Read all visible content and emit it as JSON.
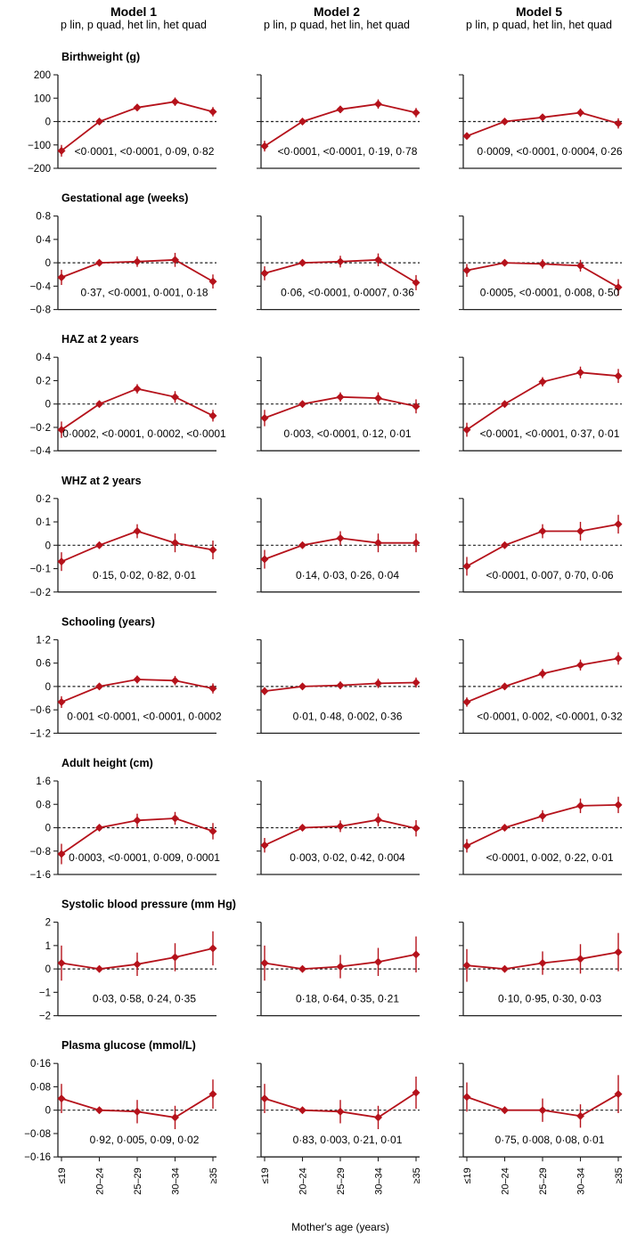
{
  "figure": {
    "x_label": "Mother's age (years)",
    "x_categories": [
      "≤19",
      "20–24",
      "25–29",
      "30–34",
      "≥35"
    ],
    "model_subtitle": "p lin, p quad, het lin, het quad"
  },
  "chart_data": {
    "type": "line",
    "models": [
      "Model 1",
      "Model 2",
      "Model 5"
    ],
    "categories": [
      "≤19",
      "20–24",
      "25–29",
      "30–34",
      "≥35"
    ],
    "xlabel": "Mother's age (years)",
    "reference_line": 0,
    "error_bars": "95% CI",
    "outcomes": [
      {
        "title": "Birthweight (g)",
        "ylim": [
          -200,
          200
        ],
        "ticks": [
          "200",
          "100",
          "0",
          "−100",
          "−200"
        ],
        "tick_values": [
          200,
          100,
          0,
          -100,
          -200
        ],
        "panels": [
          {
            "estimates": [
              -125,
              0,
              60,
              85,
              42
            ],
            "lower": [
              -150,
              0,
              45,
              67,
              22
            ],
            "upper": [
              -100,
              0,
              75,
              103,
              62
            ],
            "pvalues": "<0·0001, <0·0001, 0·09, 0·82"
          },
          {
            "estimates": [
              -105,
              0,
              52,
              75,
              38
            ],
            "lower": [
              -128,
              0,
              37,
              55,
              18
            ],
            "upper": [
              -82,
              0,
              67,
              95,
              58
            ],
            "pvalues": "<0·0001, <0·0001, 0·19, 0·78"
          },
          {
            "estimates": [
              -62,
              0,
              18,
              38,
              -8
            ],
            "lower": [
              -75,
              0,
              5,
              20,
              -30
            ],
            "upper": [
              -49,
              0,
              31,
              56,
              14
            ],
            "pvalues": "0·0009, <0·0001, 0·0004, 0·26"
          }
        ]
      },
      {
        "title": "Gestational age (weeks)",
        "ylim": [
          -0.8,
          0.8
        ],
        "ticks": [
          "0·8",
          "0·4",
          "0",
          "−0·4",
          "−0·8"
        ],
        "tick_values": [
          0.8,
          0.4,
          0,
          -0.4,
          -0.8
        ],
        "panels": [
          {
            "estimates": [
              -0.25,
              0,
              0.02,
              0.05,
              -0.32
            ],
            "lower": [
              -0.38,
              0,
              -0.07,
              -0.07,
              -0.44
            ],
            "upper": [
              -0.12,
              0,
              0.11,
              0.17,
              -0.2
            ],
            "pvalues": "0·37, <0·0001, 0·001, 0·18"
          },
          {
            "estimates": [
              -0.18,
              0,
              0.02,
              0.05,
              -0.34
            ],
            "lower": [
              -0.3,
              0,
              -0.08,
              -0.06,
              -0.47
            ],
            "upper": [
              -0.06,
              0,
              0.12,
              0.16,
              -0.21
            ],
            "pvalues": "0·06, <0·0001, 0·0007, 0·36"
          },
          {
            "estimates": [
              -0.13,
              0,
              -0.02,
              -0.05,
              -0.42
            ],
            "lower": [
              -0.24,
              0,
              -0.1,
              -0.15,
              -0.56
            ],
            "upper": [
              -0.02,
              0,
              0.06,
              0.05,
              -0.28
            ],
            "pvalues": "0·0005, <0·0001, 0·008, 0·50"
          }
        ]
      },
      {
        "title": "HAZ at 2 years",
        "ylim": [
          -0.4,
          0.4
        ],
        "ticks": [
          "0·4",
          "0·2",
          "0",
          "−0·2",
          "−0·4"
        ],
        "tick_values": [
          0.4,
          0.2,
          0,
          -0.2,
          -0.4
        ],
        "panels": [
          {
            "estimates": [
              -0.22,
              0,
              0.13,
              0.06,
              -0.1
            ],
            "lower": [
              -0.29,
              0,
              0.09,
              0.01,
              -0.15
            ],
            "upper": [
              -0.15,
              0,
              0.17,
              0.11,
              -0.05
            ],
            "pvalues": "0·0002, <0·0001, 0·0002, <0·0001"
          },
          {
            "estimates": [
              -0.12,
              0,
              0.06,
              0.05,
              -0.02
            ],
            "lower": [
              -0.19,
              0,
              0.02,
              0,
              -0.08
            ],
            "upper": [
              -0.05,
              0,
              0.1,
              0.1,
              0.04
            ],
            "pvalues": "0·003, <0·0001, 0·12, 0·01"
          },
          {
            "estimates": [
              -0.22,
              0,
              0.19,
              0.27,
              0.24
            ],
            "lower": [
              -0.28,
              0,
              0.15,
              0.22,
              0.18
            ],
            "upper": [
              -0.16,
              0,
              0.23,
              0.32,
              0.3
            ],
            "pvalues": "<0·0001, <0·0001, 0·37, 0·01"
          }
        ]
      },
      {
        "title": "WHZ at 2 years",
        "ylim": [
          -0.2,
          0.2
        ],
        "ticks": [
          "0·2",
          "0·1",
          "0",
          "−0·1",
          "−0·2"
        ],
        "tick_values": [
          0.2,
          0.1,
          0,
          -0.1,
          -0.2
        ],
        "panels": [
          {
            "estimates": [
              -0.07,
              0,
              0.06,
              0.01,
              -0.02
            ],
            "lower": [
              -0.11,
              0,
              0.03,
              -0.03,
              -0.06
            ],
            "upper": [
              -0.03,
              0,
              0.09,
              0.05,
              0.02
            ],
            "pvalues": "0·15, 0·02, 0·82, 0·01"
          },
          {
            "estimates": [
              -0.06,
              0,
              0.03,
              0.01,
              0.01
            ],
            "lower": [
              -0.1,
              0,
              0,
              -0.03,
              -0.03
            ],
            "upper": [
              -0.02,
              0,
              0.06,
              0.05,
              0.05
            ],
            "pvalues": "0·14, 0·03, 0·26, 0·04"
          },
          {
            "estimates": [
              -0.09,
              0,
              0.06,
              0.06,
              0.09
            ],
            "lower": [
              -0.13,
              0,
              0.03,
              0.02,
              0.05
            ],
            "upper": [
              -0.05,
              0,
              0.09,
              0.1,
              0.13
            ],
            "pvalues": "<0·0001, 0·007, 0·70, 0·06"
          }
        ]
      },
      {
        "title": "Schooling (years)",
        "ylim": [
          -1.2,
          1.2
        ],
        "ticks": [
          "1·2",
          "0·6",
          "0",
          "−0·6",
          "−1·2"
        ],
        "tick_values": [
          1.2,
          0.6,
          0,
          -0.6,
          -1.2
        ],
        "panels": [
          {
            "estimates": [
              -0.4,
              0,
              0.18,
              0.15,
              -0.05
            ],
            "lower": [
              -0.55,
              0,
              0.08,
              0.03,
              -0.18
            ],
            "upper": [
              -0.25,
              0,
              0.28,
              0.27,
              0.08
            ],
            "pvalues": "0·001 <0·0001, <0·0001, 0·0002"
          },
          {
            "estimates": [
              -0.12,
              0,
              0.03,
              0.08,
              0.1
            ],
            "lower": [
              -0.22,
              0,
              -0.07,
              -0.04,
              -0.03
            ],
            "upper": [
              -0.02,
              0,
              0.13,
              0.2,
              0.23
            ],
            "pvalues": "0·01, 0·48, 0·002, 0·36"
          },
          {
            "estimates": [
              -0.4,
              0,
              0.33,
              0.55,
              0.72
            ],
            "lower": [
              -0.52,
              0,
              0.21,
              0.41,
              0.56
            ],
            "upper": [
              -0.28,
              0,
              0.45,
              0.69,
              0.88
            ],
            "pvalues": "<0·0001, 0·002, <0·0001, 0·32"
          }
        ]
      },
      {
        "title": "Adult height (cm)",
        "ylim": [
          -1.6,
          1.6
        ],
        "ticks": [
          "1·6",
          "0·8",
          "0",
          "−0·8",
          "−1·6"
        ],
        "tick_values": [
          1.6,
          0.8,
          0,
          -0.8,
          -1.6
        ],
        "panels": [
          {
            "estimates": [
              -0.9,
              0,
              0.25,
              0.32,
              -0.12
            ],
            "lower": [
              -1.25,
              0,
              0.02,
              0.1,
              -0.4
            ],
            "upper": [
              -0.55,
              0,
              0.48,
              0.54,
              0.16
            ],
            "pvalues": "0·0003, <0·0001, 0·009, 0·0001"
          },
          {
            "estimates": [
              -0.6,
              0,
              0.05,
              0.27,
              -0.02
            ],
            "lower": [
              -0.85,
              0,
              -0.15,
              0.05,
              -0.3
            ],
            "upper": [
              -0.35,
              0,
              0.25,
              0.49,
              0.26
            ],
            "pvalues": "0·003, 0·02, 0·42, 0·004"
          },
          {
            "estimates": [
              -0.62,
              0,
              0.4,
              0.75,
              0.78
            ],
            "lower": [
              -0.85,
              0,
              0.2,
              0.5,
              0.5
            ],
            "upper": [
              -0.39,
              0,
              0.6,
              1,
              1.06
            ],
            "pvalues": "<0·0001, 0·002, 0·22, 0·01"
          }
        ]
      },
      {
        "title": "Systolic blood pressure (mm Hg)",
        "ylim": [
          -2,
          2
        ],
        "ticks": [
          "2",
          "1",
          "0",
          "−1",
          "−2"
        ],
        "tick_values": [
          2,
          1,
          0,
          -1,
          -2
        ],
        "panels": [
          {
            "estimates": [
              0.25,
              0,
              0.2,
              0.5,
              0.88
            ],
            "lower": [
              -0.5,
              0,
              -0.3,
              -0.1,
              0.15
            ],
            "upper": [
              1,
              0,
              0.7,
              1.1,
              1.61
            ],
            "pvalues": "0·03, 0·58, 0·24, 0·35"
          },
          {
            "estimates": [
              0.25,
              0,
              0.1,
              0.3,
              0.62
            ],
            "lower": [
              -0.5,
              0,
              -0.4,
              -0.3,
              -0.15
            ],
            "upper": [
              1,
              0,
              0.6,
              0.9,
              1.39
            ],
            "pvalues": "0·18, 0·64, 0·35, 0·21"
          },
          {
            "estimates": [
              0.15,
              0,
              0.25,
              0.43,
              0.72
            ],
            "lower": [
              -0.55,
              0,
              -0.25,
              -0.2,
              -0.1
            ],
            "upper": [
              0.85,
              0,
              0.75,
              1.06,
              1.54
            ],
            "pvalues": "0·10, 0·95, 0·30, 0·03"
          }
        ]
      },
      {
        "title": "Plasma glucose (mmol/L)",
        "ylim": [
          -0.16,
          0.16
        ],
        "ticks": [
          "0·16",
          "0·08",
          "0",
          "−0·08",
          "−0·16"
        ],
        "tick_values": [
          0.16,
          0.08,
          0,
          -0.08,
          -0.16
        ],
        "panels": [
          {
            "estimates": [
              0.04,
              0,
              -0.005,
              -0.025,
              0.055
            ],
            "lower": [
              -0.01,
              0,
              -0.045,
              -0.065,
              0.005
            ],
            "upper": [
              0.09,
              0,
              0.035,
              0.015,
              0.105
            ],
            "pvalues": "0·92, 0·005, 0·09, 0·02"
          },
          {
            "estimates": [
              0.04,
              0,
              -0.005,
              -0.025,
              0.06
            ],
            "lower": [
              -0.01,
              0,
              -0.045,
              -0.065,
              0.005
            ],
            "upper": [
              0.09,
              0,
              0.035,
              0.015,
              0.115
            ],
            "pvalues": "0·83, 0·003, 0·21, 0·01"
          },
          {
            "estimates": [
              0.045,
              0,
              0,
              -0.02,
              0.055
            ],
            "lower": [
              -0.005,
              0,
              -0.04,
              -0.06,
              -0.01
            ],
            "upper": [
              0.095,
              0,
              0.04,
              0.02,
              0.12
            ],
            "pvalues": "0·75, 0·008, 0·08, 0·01"
          }
        ]
      }
    ]
  },
  "colors": {
    "series": "#b5121b",
    "axis": "#222222",
    "reference": "#222222"
  }
}
